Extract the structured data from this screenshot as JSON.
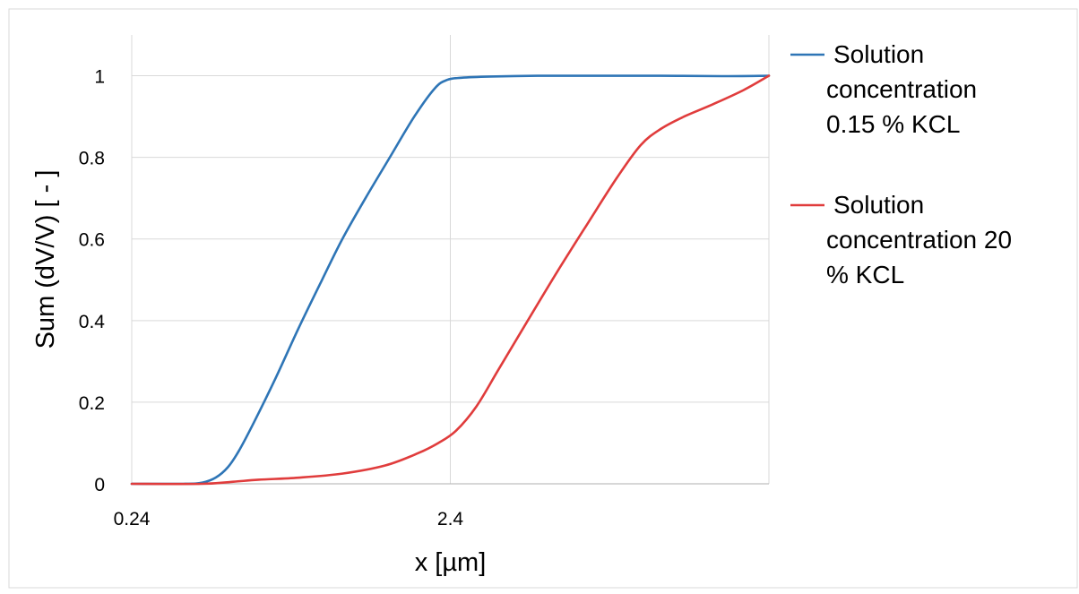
{
  "chart_data": {
    "type": "line",
    "title": "",
    "xlabel": "x [µm]",
    "ylabel": "Sum (dV/V) [ - ]",
    "x_scale": "log",
    "xlim": [
      0.24,
      24
    ],
    "ylim": [
      0,
      1.1
    ],
    "x_ticks": [
      {
        "value": 0.24,
        "label": "0.24"
      },
      {
        "value": 2.4,
        "label": "2.4"
      }
    ],
    "y_ticks": [
      {
        "value": 0,
        "label": "0"
      },
      {
        "value": 0.2,
        "label": "0.2"
      },
      {
        "value": 0.4,
        "label": "0.4"
      },
      {
        "value": 0.6,
        "label": "0.6"
      },
      {
        "value": 0.8,
        "label": "0.8"
      },
      {
        "value": 1,
        "label": "1"
      }
    ],
    "x_grid": [
      0.24,
      2.4,
      24
    ],
    "grid": true,
    "legend_position": "right",
    "legend_lines": [
      [
        "Solution",
        "concentration",
        "0.15 % KCL"
      ],
      [
        "Solution",
        "concentration 20",
        "% KCL"
      ]
    ],
    "series": [
      {
        "name": "Solution concentration 0.15 % KCL",
        "color": "#2e75b6",
        "x": [
          0.24,
          0.35,
          0.4,
          0.44,
          0.48,
          0.52,
          0.58,
          0.68,
          0.8,
          0.95,
          1.1,
          1.3,
          1.55,
          1.85,
          2.15,
          2.35,
          2.6,
          3.2,
          4.5,
          7,
          11,
          17,
          24
        ],
        "y": [
          0,
          0,
          0.003,
          0.015,
          0.04,
          0.08,
          0.15,
          0.26,
          0.38,
          0.5,
          0.6,
          0.7,
          0.8,
          0.9,
          0.97,
          0.99,
          0.995,
          0.998,
          1,
          1,
          1,
          0.999,
          1
        ]
      },
      {
        "name": "Solution concentration 20 % KCL",
        "color": "#e03c3c",
        "x": [
          0.24,
          0.4,
          0.5,
          0.6,
          0.8,
          1.1,
          1.5,
          1.9,
          2.2,
          2.5,
          2.9,
          3.4,
          4.2,
          5.2,
          6.5,
          8,
          9.5,
          11,
          13,
          16,
          20,
          24
        ],
        "y": [
          0,
          0,
          0.005,
          0.01,
          0.015,
          0.025,
          0.045,
          0.075,
          0.1,
          0.13,
          0.19,
          0.28,
          0.4,
          0.52,
          0.64,
          0.75,
          0.83,
          0.87,
          0.9,
          0.93,
          0.965,
          1
        ]
      }
    ]
  }
}
